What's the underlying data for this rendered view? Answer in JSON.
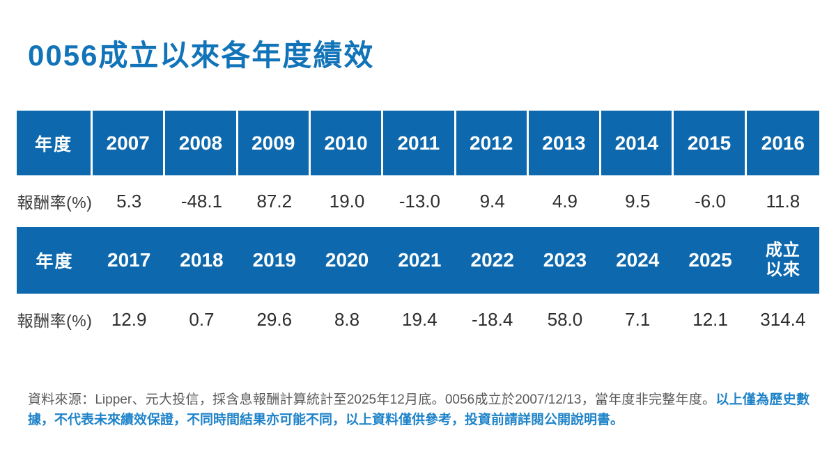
{
  "title": "0056成立以來各年度績效",
  "colors": {
    "title_blue": "#1173b8",
    "header_blue": "#0d68ad",
    "disclaimer_blue": "#1e83c9",
    "source_gray": "#58595b",
    "value_text": "#2e2e2e"
  },
  "table1": {
    "header_label": "年度",
    "years": [
      "2007",
      "2008",
      "2009",
      "2010",
      "2011",
      "2012",
      "2013",
      "2014",
      "2015",
      "2016"
    ],
    "row_label": "報酬率(%)",
    "values": [
      "5.3",
      "-48.1",
      "87.2",
      "19.0",
      "-13.0",
      "9.4",
      "4.9",
      "9.5",
      "-6.0",
      "11.8"
    ]
  },
  "table2": {
    "header_label": "年度",
    "years": [
      "2017",
      "2018",
      "2019",
      "2020",
      "2021",
      "2022",
      "2023",
      "2024",
      "2025",
      "成立\n以來"
    ],
    "row_label": "報酬率(%)",
    "values": [
      "12.9",
      "0.7",
      "29.6",
      "8.8",
      "19.4",
      "-18.4",
      "58.0",
      "7.1",
      "12.1",
      "314.4"
    ]
  },
  "footer": {
    "source_text": "資料來源：Lipper、元大投信，採含息報酬計算統計至2025年12月底。0056成立於2007/12/13，當年度非完整年度。",
    "disclaimer_text": "以上僅為歷史數據，不代表未來績效保證，不同時間結果亦可能不同，以上資料僅供參考，投資前請詳閱公開說明書。"
  },
  "chart_data": {
    "type": "table",
    "title": "0056成立以來各年度績效",
    "categories": [
      "2007",
      "2008",
      "2009",
      "2010",
      "2011",
      "2012",
      "2013",
      "2014",
      "2015",
      "2016",
      "2017",
      "2018",
      "2019",
      "2020",
      "2021",
      "2022",
      "2023",
      "2024",
      "2025",
      "成立以來"
    ],
    "series": [
      {
        "name": "報酬率(%)",
        "values": [
          5.3,
          -48.1,
          87.2,
          19.0,
          -13.0,
          9.4,
          4.9,
          9.5,
          -6.0,
          11.8,
          12.9,
          0.7,
          29.6,
          8.8,
          19.4,
          -18.4,
          58.0,
          7.1,
          12.1,
          314.4
        ]
      }
    ]
  }
}
